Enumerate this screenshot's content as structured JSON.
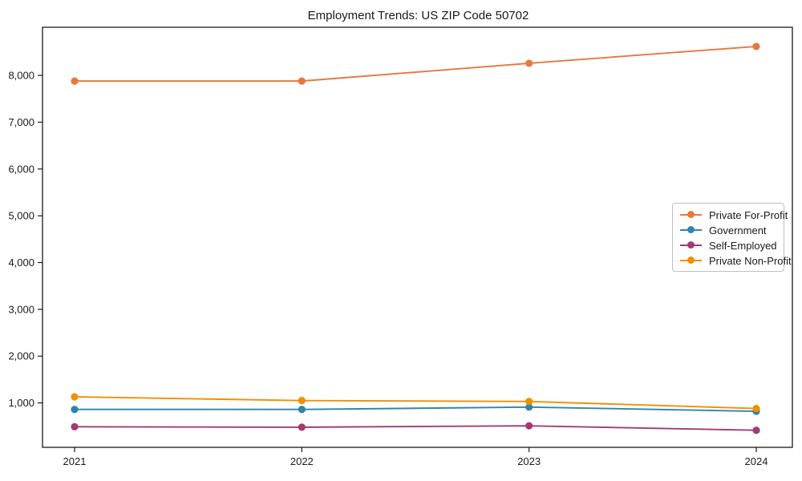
{
  "chart_data": {
    "type": "line",
    "title": "Employment Trends: US ZIP Code 50702",
    "xlabel": "",
    "ylabel": "",
    "x": [
      2021,
      2022,
      2023,
      2024
    ],
    "x_tick_labels": [
      "2021",
      "2022",
      "2023",
      "2024"
    ],
    "y_ticks": [
      1000,
      2000,
      3000,
      4000,
      5000,
      6000,
      7000,
      8000
    ],
    "y_tick_labels": [
      "1,000",
      "2,000",
      "3,000",
      "4,000",
      "5,000",
      "6,000",
      "7,000",
      "8,000"
    ],
    "ylim": [
      50,
      9030
    ],
    "grid": false,
    "legend_position": "center right",
    "series": [
      {
        "name": "Private For-Profit",
        "color": "#e8773d",
        "values": [
          7880,
          7880,
          8260,
          8620
        ]
      },
      {
        "name": "Government",
        "color": "#2e86ab",
        "values": [
          860,
          860,
          910,
          820
        ]
      },
      {
        "name": "Self-Employed",
        "color": "#a23b72",
        "values": [
          490,
          480,
          510,
          415
        ]
      },
      {
        "name": "Private Non-Profit",
        "color": "#f18f01",
        "values": [
          1130,
          1050,
          1030,
          880
        ]
      }
    ],
    "marker": "circle",
    "frame_color": "#1a1a1a"
  }
}
